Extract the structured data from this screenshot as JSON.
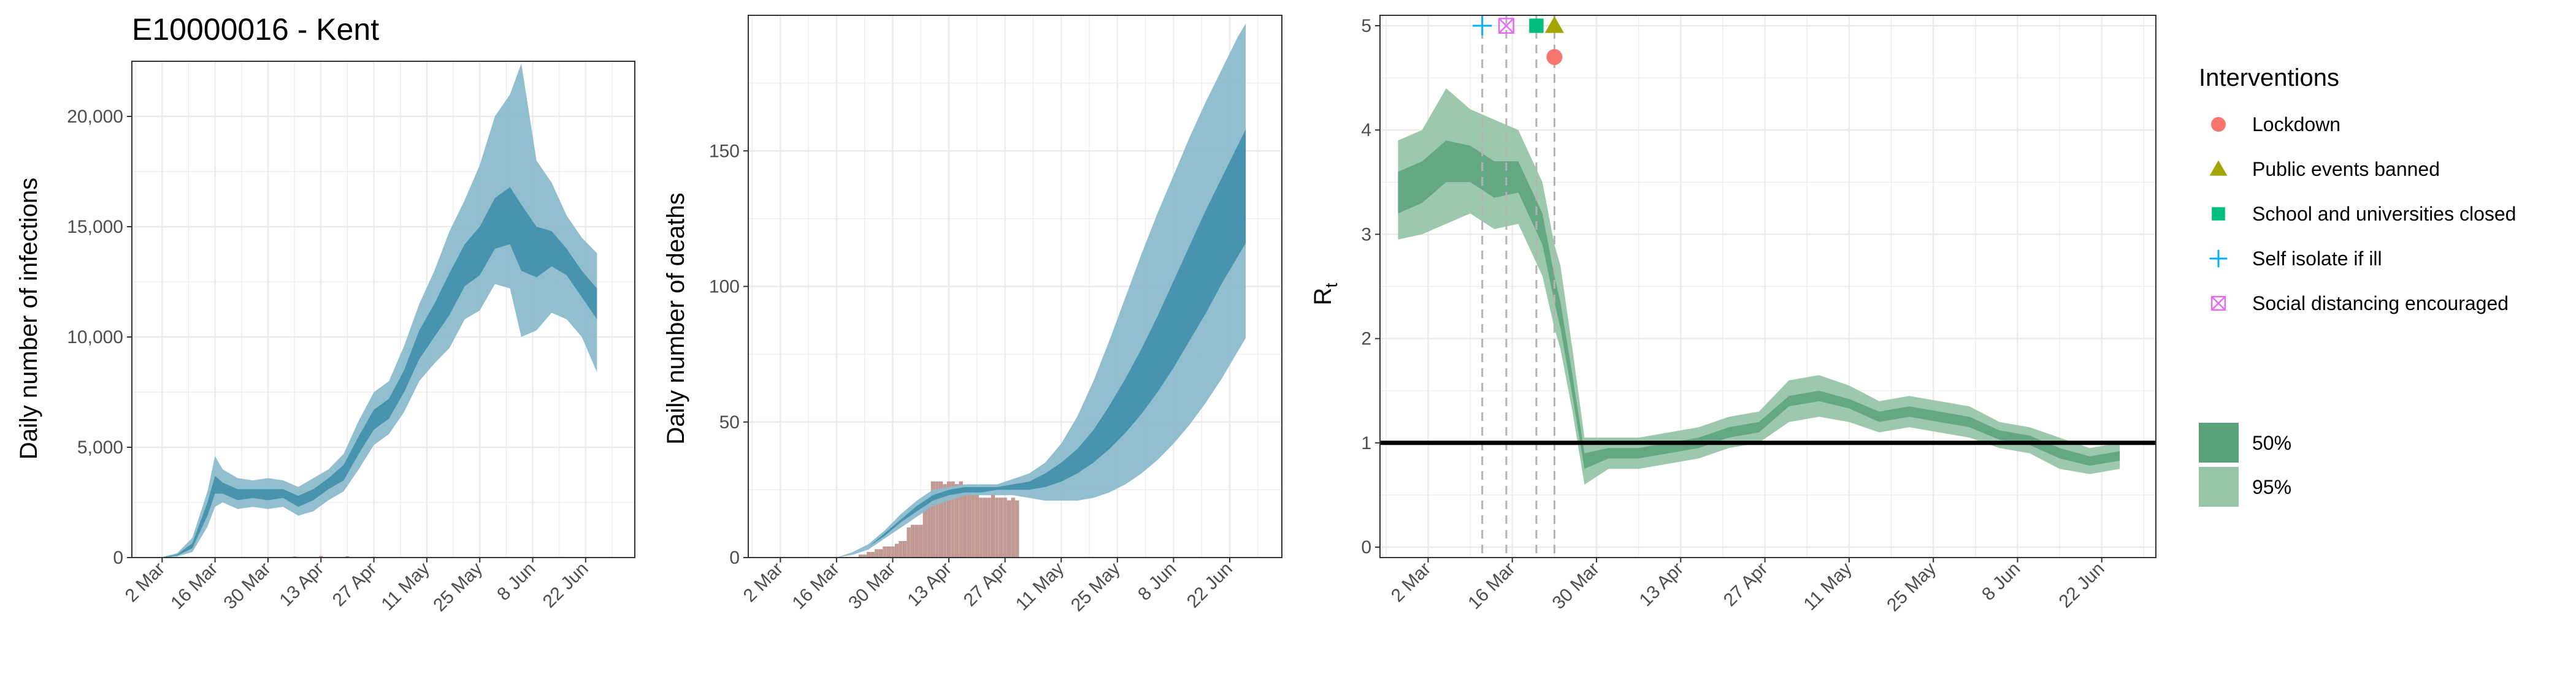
{
  "chart_data": [
    {
      "type": "area",
      "title": "E10000016 - Kent",
      "ylabel": "Daily number of infections",
      "xlabel": "",
      "x_ticks": [
        "2 Mar",
        "16 Mar",
        "30 Mar",
        "13 Apr",
        "27 Apr",
        "11 May",
        "25 May",
        "8 Jun",
        "22 Jun"
      ],
      "y_ticks": [
        "0",
        "5,000",
        "10,000",
        "15,000",
        "20,000"
      ],
      "y_tick_values": [
        0,
        5000,
        10000,
        15000,
        20000
      ],
      "ylim": [
        0,
        22500
      ],
      "x_range": [
        "2020-02-23",
        "2020-07-05"
      ],
      "grid": true,
      "series": [
        {
          "name": "95%",
          "x": [
            "2020-03-02",
            "2020-03-06",
            "2020-03-10",
            "2020-03-14",
            "2020-03-16",
            "2020-03-18",
            "2020-03-22",
            "2020-03-26",
            "2020-03-30",
            "2020-04-03",
            "2020-04-07",
            "2020-04-11",
            "2020-04-15",
            "2020-04-19",
            "2020-04-23",
            "2020-04-27",
            "2020-05-01",
            "2020-05-05",
            "2020-05-09",
            "2020-05-13",
            "2020-05-17",
            "2020-05-21",
            "2020-05-25",
            "2020-05-29",
            "2020-06-02",
            "2020-06-05",
            "2020-06-09",
            "2020-06-13",
            "2020-06-17",
            "2020-06-21",
            "2020-06-25"
          ],
          "lower": [
            0,
            50,
            250,
            1400,
            2300,
            2500,
            2200,
            2300,
            2200,
            2300,
            1900,
            2100,
            2600,
            3000,
            4000,
            5100,
            5600,
            6600,
            8000,
            8800,
            9500,
            10800,
            11200,
            12400,
            12200,
            10000,
            10300,
            11100,
            10800,
            10000,
            8400
          ],
          "upper": [
            20,
            200,
            900,
            3000,
            4600,
            4000,
            3600,
            3500,
            3600,
            3500,
            3200,
            3600,
            4000,
            4700,
            6200,
            7500,
            8000,
            9600,
            11500,
            13000,
            14800,
            16200,
            17800,
            20000,
            21000,
            22400,
            18000,
            17000,
            15500,
            14500,
            13800
          ]
        },
        {
          "name": "50%",
          "x": [
            "2020-03-02",
            "2020-03-06",
            "2020-03-10",
            "2020-03-14",
            "2020-03-16",
            "2020-03-18",
            "2020-03-22",
            "2020-03-26",
            "2020-03-30",
            "2020-04-03",
            "2020-04-07",
            "2020-04-11",
            "2020-04-15",
            "2020-04-19",
            "2020-04-23",
            "2020-04-27",
            "2020-05-01",
            "2020-05-05",
            "2020-05-09",
            "2020-05-13",
            "2020-05-17",
            "2020-05-21",
            "2020-05-25",
            "2020-05-29",
            "2020-06-02",
            "2020-06-05",
            "2020-06-09",
            "2020-06-13",
            "2020-06-17",
            "2020-06-21",
            "2020-06-25"
          ],
          "lower": [
            0,
            90,
            420,
            1900,
            2900,
            2900,
            2600,
            2700,
            2600,
            2700,
            2300,
            2600,
            3100,
            3500,
            4700,
            5800,
            6300,
            7500,
            9000,
            10000,
            11000,
            12300,
            12800,
            14000,
            14200,
            13000,
            12700,
            13200,
            12800,
            11800,
            10800
          ],
          "upper": [
            10,
            140,
            650,
            2500,
            3700,
            3400,
            3100,
            3100,
            3100,
            3100,
            2800,
            3100,
            3600,
            4200,
            5500,
            6700,
            7200,
            8500,
            10300,
            11500,
            12900,
            14200,
            15000,
            16300,
            16800,
            16000,
            15000,
            14800,
            14000,
            13000,
            12200
          ]
        }
      ],
      "observed": {
        "name": "observed",
        "x": [
          "2020-03-30",
          "2020-04-06",
          "2020-04-13",
          "2020-04-20",
          "2020-04-27"
        ],
        "values": [
          20,
          40,
          60,
          50,
          30
        ]
      }
    },
    {
      "type": "area",
      "title": "",
      "ylabel": "Daily number of deaths",
      "xlabel": "",
      "x_ticks": [
        "2 Mar",
        "16 Mar",
        "30 Mar",
        "13 Apr",
        "27 Apr",
        "11 May",
        "25 May",
        "8 Jun",
        "22 Jun"
      ],
      "y_ticks": [
        "0",
        "50",
        "100",
        "150"
      ],
      "y_tick_values": [
        0,
        50,
        100,
        150
      ],
      "ylim": [
        0,
        200
      ],
      "x_range": [
        "2020-02-23",
        "2020-07-05"
      ],
      "grid": true,
      "series": [
        {
          "name": "95%",
          "x": [
            "2020-03-10",
            "2020-03-16",
            "2020-03-20",
            "2020-03-24",
            "2020-03-28",
            "2020-04-01",
            "2020-04-05",
            "2020-04-09",
            "2020-04-13",
            "2020-04-17",
            "2020-04-21",
            "2020-04-25",
            "2020-04-29",
            "2020-05-03",
            "2020-05-07",
            "2020-05-11",
            "2020-05-15",
            "2020-05-19",
            "2020-05-23",
            "2020-05-27",
            "2020-05-31",
            "2020-06-04",
            "2020-06-08",
            "2020-06-12",
            "2020-06-16",
            "2020-06-20",
            "2020-06-24",
            "2020-06-26"
          ],
          "lower": [
            0,
            0,
            1,
            3,
            7,
            11,
            15,
            19,
            21,
            23,
            23,
            23,
            23,
            22,
            21,
            21,
            21,
            22,
            24,
            27,
            31,
            36,
            42,
            49,
            57,
            66,
            76,
            81
          ],
          "upper": [
            0,
            0,
            2,
            5,
            10,
            16,
            21,
            25,
            26,
            27,
            27,
            27,
            29,
            31,
            35,
            42,
            52,
            65,
            80,
            96,
            112,
            127,
            141,
            155,
            168,
            180,
            192,
            197
          ]
        },
        {
          "name": "50%",
          "x": [
            "2020-03-10",
            "2020-03-16",
            "2020-03-20",
            "2020-03-24",
            "2020-03-28",
            "2020-04-01",
            "2020-04-05",
            "2020-04-09",
            "2020-04-13",
            "2020-04-17",
            "2020-04-21",
            "2020-04-25",
            "2020-04-29",
            "2020-05-03",
            "2020-05-07",
            "2020-05-11",
            "2020-05-15",
            "2020-05-19",
            "2020-05-23",
            "2020-05-27",
            "2020-05-31",
            "2020-06-04",
            "2020-06-08",
            "2020-06-12",
            "2020-06-16",
            "2020-06-20",
            "2020-06-24",
            "2020-06-26"
          ],
          "lower": [
            0,
            0,
            1,
            4,
            8,
            13,
            17,
            21,
            23,
            24,
            24,
            25,
            25,
            25,
            26,
            28,
            31,
            35,
            40,
            46,
            53,
            61,
            70,
            80,
            90,
            101,
            111,
            116
          ],
          "upper": [
            0,
            0,
            1,
            4,
            9,
            14,
            19,
            23,
            25,
            26,
            26,
            26,
            27,
            28,
            31,
            35,
            40,
            47,
            56,
            66,
            77,
            89,
            102,
            115,
            128,
            140,
            152,
            158
          ]
        }
      ],
      "observed": {
        "name": "observed",
        "x": [
          "2020-03-22",
          "2020-03-23",
          "2020-03-24",
          "2020-03-25",
          "2020-03-26",
          "2020-03-27",
          "2020-03-28",
          "2020-03-29",
          "2020-03-30",
          "2020-03-31",
          "2020-04-01",
          "2020-04-02",
          "2020-04-03",
          "2020-04-04",
          "2020-04-05",
          "2020-04-06",
          "2020-04-07",
          "2020-04-08",
          "2020-04-09",
          "2020-04-10",
          "2020-04-11",
          "2020-04-12",
          "2020-04-13",
          "2020-04-14",
          "2020-04-15",
          "2020-04-16",
          "2020-04-17",
          "2020-04-18",
          "2020-04-19",
          "2020-04-20",
          "2020-04-21",
          "2020-04-22",
          "2020-04-23",
          "2020-04-24",
          "2020-04-25",
          "2020-04-26",
          "2020-04-27",
          "2020-04-28",
          "2020-04-29",
          "2020-04-30"
        ],
        "values": [
          1,
          1,
          2,
          2,
          3,
          3,
          4,
          4,
          4,
          5,
          6,
          6,
          11,
          12,
          12,
          12,
          20,
          21,
          28,
          28,
          28,
          27,
          28,
          28,
          27,
          28,
          26,
          25,
          23,
          24,
          22,
          22,
          22,
          23,
          22,
          22,
          22,
          21,
          22,
          21
        ]
      }
    },
    {
      "type": "area",
      "title": "",
      "ylabel": "R",
      "ylabel_subscript": "t",
      "xlabel": "",
      "x_ticks": [
        "2 Mar",
        "16 Mar",
        "30 Mar",
        "13 Apr",
        "27 Apr",
        "11 May",
        "25 May",
        "8 Jun",
        "22 Jun"
      ],
      "y_ticks": [
        "0",
        "1",
        "2",
        "3",
        "4",
        "5"
      ],
      "y_tick_values": [
        0,
        1,
        2,
        3,
        4,
        5
      ],
      "ylim": [
        -0.1,
        5.1
      ],
      "x_range": [
        "2020-02-23",
        "2020-07-01"
      ],
      "grid": true,
      "reference_line": 1,
      "series": [
        {
          "name": "95%",
          "x": [
            "2020-02-26",
            "2020-03-01",
            "2020-03-05",
            "2020-03-09",
            "2020-03-13",
            "2020-03-17",
            "2020-03-21",
            "2020-03-23",
            "2020-03-24",
            "2020-03-26",
            "2020-03-28",
            "2020-04-01",
            "2020-04-06",
            "2020-04-11",
            "2020-04-16",
            "2020-04-21",
            "2020-04-26",
            "2020-05-01",
            "2020-05-06",
            "2020-05-11",
            "2020-05-16",
            "2020-05-21",
            "2020-05-26",
            "2020-05-31",
            "2020-06-05",
            "2020-06-10",
            "2020-06-15",
            "2020-06-20",
            "2020-06-25"
          ],
          "lower": [
            2.95,
            3.0,
            3.1,
            3.2,
            3.05,
            3.1,
            2.6,
            2.1,
            1.9,
            1.3,
            0.6,
            0.75,
            0.75,
            0.8,
            0.85,
            0.95,
            1.0,
            1.2,
            1.25,
            1.2,
            1.1,
            1.15,
            1.1,
            1.05,
            0.95,
            0.9,
            0.75,
            0.7,
            0.75
          ],
          "upper": [
            3.9,
            4.0,
            4.4,
            4.2,
            4.1,
            4.0,
            3.5,
            2.9,
            2.7,
            1.9,
            1.05,
            1.05,
            1.05,
            1.1,
            1.15,
            1.25,
            1.3,
            1.6,
            1.65,
            1.55,
            1.4,
            1.45,
            1.4,
            1.35,
            1.2,
            1.15,
            1.05,
            0.95,
            1.0
          ]
        },
        {
          "name": "50%",
          "x": [
            "2020-02-26",
            "2020-03-01",
            "2020-03-05",
            "2020-03-09",
            "2020-03-13",
            "2020-03-17",
            "2020-03-21",
            "2020-03-23",
            "2020-03-24",
            "2020-03-26",
            "2020-03-28",
            "2020-04-01",
            "2020-04-06",
            "2020-04-11",
            "2020-04-16",
            "2020-04-21",
            "2020-04-26",
            "2020-05-01",
            "2020-05-06",
            "2020-05-11",
            "2020-05-16",
            "2020-05-21",
            "2020-05-26",
            "2020-05-31",
            "2020-06-05",
            "2020-06-10",
            "2020-06-15",
            "2020-06-20",
            "2020-06-25"
          ],
          "lower": [
            3.2,
            3.3,
            3.5,
            3.5,
            3.35,
            3.4,
            2.9,
            2.35,
            2.1,
            1.45,
            0.75,
            0.85,
            0.85,
            0.9,
            0.95,
            1.05,
            1.1,
            1.35,
            1.4,
            1.33,
            1.2,
            1.25,
            1.2,
            1.15,
            1.03,
            0.98,
            0.85,
            0.78,
            0.83
          ],
          "upper": [
            3.6,
            3.7,
            3.9,
            3.85,
            3.7,
            3.7,
            3.2,
            2.6,
            2.35,
            1.65,
            0.9,
            0.95,
            0.95,
            1.0,
            1.05,
            1.15,
            1.2,
            1.45,
            1.5,
            1.42,
            1.3,
            1.35,
            1.3,
            1.25,
            1.12,
            1.07,
            0.95,
            0.87,
            0.92
          ]
        }
      ],
      "interventions": [
        {
          "label": "Lockdown",
          "date": "2020-03-23",
          "y": 4.7,
          "shape": "circle",
          "color": "#F8766D"
        },
        {
          "label": "Public events banned",
          "date": "2020-03-23",
          "y": 5.0,
          "shape": "triangle",
          "color": "#A3A500"
        },
        {
          "label": "School and universities closed",
          "date": "2020-03-20",
          "y": 5.0,
          "shape": "square",
          "color": "#00BF7D"
        },
        {
          "label": "Self isolate if ill",
          "date": "2020-03-11",
          "y": 5.0,
          "shape": "plus",
          "color": "#00B0F6"
        },
        {
          "label": "Social distancing encouraged",
          "date": "2020-03-15",
          "y": 5.0,
          "shape": "boxcross",
          "color": "#E76BF3"
        }
      ]
    }
  ],
  "legend": {
    "interventions_title": "Interventions",
    "interventions": [
      {
        "label": "Lockdown",
        "shape": "circle",
        "color": "#F8766D"
      },
      {
        "label": "Public events banned",
        "shape": "triangle",
        "color": "#A3A500"
      },
      {
        "label": "School and universities closed",
        "shape": "square",
        "color": "#00BF7D"
      },
      {
        "label": "Self isolate if ill",
        "shape": "plus",
        "color": "#00B0F6"
      },
      {
        "label": "Social distancing encouraged",
        "shape": "boxcross",
        "color": "#E76BF3"
      }
    ],
    "intervals": [
      {
        "label": "50%",
        "color": "#5aa27a"
      },
      {
        "label": "95%",
        "color": "#97c6a7"
      }
    ]
  },
  "colors": {
    "infection_95": "#8cbccd",
    "infection_50": "#3b8ba7",
    "observed_bars": "#c49a94",
    "rt_95": "#97c6a7",
    "rt_50": "#5aa27a",
    "grid": "#ebebeb",
    "vline": "#b3b3b3"
  }
}
